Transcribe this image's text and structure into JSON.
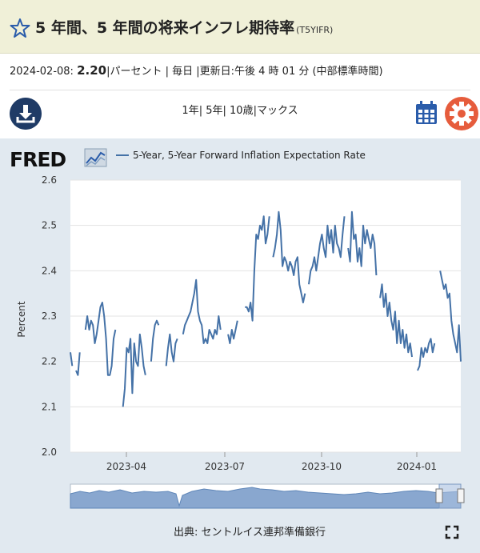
{
  "header": {
    "title": "5 年間、5 年間の将来インフレ期待率",
    "code": "(T5YIFR)"
  },
  "meta": {
    "date": "2024-02-08:",
    "value": "2.20",
    "info": "|パーセント | 毎日 |更新日:午後 4 時 01 分 (中部標準時間)"
  },
  "ranges": [
    "1年",
    "5年",
    "10歳",
    "マックス"
  ],
  "icons": {
    "download": "download-icon",
    "calendar": "calendar-icon",
    "settings": "gear-icon",
    "favorite": "star-icon",
    "fullscreen": "fullscreen-icon"
  },
  "colors": {
    "line": "#4572a7",
    "gear": "#e65c3c",
    "header_bg": "#f0f0d8",
    "chart_bg": "#e1e9f0"
  },
  "footer": {
    "source": "出典: セントルイス連邦準備銀行"
  },
  "logo": "FRED",
  "chart_data": {
    "type": "line",
    "title": "",
    "xlabel": "",
    "ylabel": "Percent",
    "ylim": [
      2.0,
      2.6
    ],
    "yticks": [
      "2.0",
      "2.1",
      "2.2",
      "2.3",
      "2.4",
      "2.5",
      "2.6"
    ],
    "xticks": [
      "2023-04",
      "2023-07",
      "2023-10",
      "2024-01"
    ],
    "grid": true,
    "legend": "top-left",
    "series": [
      {
        "name": "5-Year, 5-Year Forward Inflation Expectation Rate",
        "values": [
          [
            0,
            2.22
          ],
          [
            1,
            2.19
          ],
          [
            3,
            2.18
          ],
          [
            4,
            2.17
          ],
          [
            5,
            2.22
          ],
          [
            8,
            2.27
          ],
          [
            9,
            2.3
          ],
          [
            10,
            2.27
          ],
          [
            11,
            2.29
          ],
          [
            12,
            2.28
          ],
          [
            13,
            2.24
          ],
          [
            14,
            2.26
          ],
          [
            15,
            2.29
          ],
          [
            16,
            2.32
          ],
          [
            17,
            2.33
          ],
          [
            18,
            2.3
          ],
          [
            19,
            2.25
          ],
          [
            20,
            2.17
          ],
          [
            21,
            2.17
          ],
          [
            22,
            2.19
          ],
          [
            23,
            2.25
          ],
          [
            24,
            2.27
          ],
          [
            28,
            2.1
          ],
          [
            29,
            2.14
          ],
          [
            30,
            2.23
          ],
          [
            31,
            2.22
          ],
          [
            32,
            2.25
          ],
          [
            33,
            2.13
          ],
          [
            34,
            2.24
          ],
          [
            35,
            2.2
          ],
          [
            36,
            2.19
          ],
          [
            37,
            2.26
          ],
          [
            38,
            2.23
          ],
          [
            39,
            2.19
          ],
          [
            40,
            2.17
          ],
          [
            43,
            2.2
          ],
          [
            44,
            2.25
          ],
          [
            45,
            2.28
          ],
          [
            46,
            2.29
          ],
          [
            47,
            2.28
          ],
          [
            51,
            2.19
          ],
          [
            52,
            2.23
          ],
          [
            53,
            2.26
          ],
          [
            54,
            2.22
          ],
          [
            55,
            2.2
          ],
          [
            56,
            2.24
          ],
          [
            57,
            2.25
          ],
          [
            60,
            2.26
          ],
          [
            61,
            2.28
          ],
          [
            62,
            2.29
          ],
          [
            63,
            2.3
          ],
          [
            64,
            2.31
          ],
          [
            65,
            2.33
          ],
          [
            66,
            2.35
          ],
          [
            67,
            2.38
          ],
          [
            68,
            2.31
          ],
          [
            69,
            2.29
          ],
          [
            70,
            2.28
          ],
          [
            71,
            2.24
          ],
          [
            72,
            2.25
          ],
          [
            73,
            2.24
          ],
          [
            74,
            2.27
          ],
          [
            75,
            2.26
          ],
          [
            76,
            2.25
          ],
          [
            77,
            2.27
          ],
          [
            78,
            2.26
          ],
          [
            79,
            2.3
          ],
          [
            80,
            2.27
          ],
          [
            84,
            2.26
          ],
          [
            85,
            2.24
          ],
          [
            86,
            2.27
          ],
          [
            87,
            2.25
          ],
          [
            88,
            2.27
          ],
          [
            89,
            2.29
          ],
          [
            93,
            2.32
          ],
          [
            94,
            2.32
          ],
          [
            95,
            2.31
          ],
          [
            96,
            2.33
          ],
          [
            97,
            2.29
          ],
          [
            98,
            2.4
          ],
          [
            99,
            2.48
          ],
          [
            100,
            2.47
          ],
          [
            101,
            2.5
          ],
          [
            102,
            2.49
          ],
          [
            103,
            2.52
          ],
          [
            104,
            2.46
          ],
          [
            105,
            2.48
          ],
          [
            106,
            2.52
          ],
          [
            108,
            2.43
          ],
          [
            109,
            2.45
          ],
          [
            110,
            2.48
          ],
          [
            111,
            2.53
          ],
          [
            112,
            2.49
          ],
          [
            113,
            2.41
          ],
          [
            114,
            2.43
          ],
          [
            115,
            2.42
          ],
          [
            116,
            2.4
          ],
          [
            117,
            2.42
          ],
          [
            118,
            2.41
          ],
          [
            119,
            2.39
          ],
          [
            120,
            2.42
          ],
          [
            121,
            2.43
          ],
          [
            122,
            2.37
          ],
          [
            123,
            2.35
          ],
          [
            124,
            2.33
          ],
          [
            125,
            2.35
          ],
          [
            127,
            2.37
          ],
          [
            128,
            2.4
          ],
          [
            129,
            2.41
          ],
          [
            130,
            2.43
          ],
          [
            131,
            2.4
          ],
          [
            132,
            2.43
          ],
          [
            133,
            2.46
          ],
          [
            134,
            2.48
          ],
          [
            135,
            2.45
          ],
          [
            136,
            2.43
          ],
          [
            137,
            2.5
          ],
          [
            138,
            2.46
          ],
          [
            139,
            2.49
          ],
          [
            140,
            2.44
          ],
          [
            141,
            2.5
          ],
          [
            142,
            2.46
          ],
          [
            143,
            2.45
          ],
          [
            144,
            2.43
          ],
          [
            145,
            2.48
          ],
          [
            146,
            2.52
          ],
          [
            148,
            2.45
          ],
          [
            149,
            2.42
          ],
          [
            150,
            2.53
          ],
          [
            151,
            2.47
          ],
          [
            152,
            2.48
          ],
          [
            153,
            2.42
          ],
          [
            154,
            2.45
          ],
          [
            155,
            2.41
          ],
          [
            156,
            2.5
          ],
          [
            157,
            2.46
          ],
          [
            158,
            2.49
          ],
          [
            159,
            2.47
          ],
          [
            160,
            2.45
          ],
          [
            161,
            2.48
          ],
          [
            162,
            2.46
          ],
          [
            163,
            2.39
          ],
          [
            165,
            2.34
          ],
          [
            166,
            2.37
          ],
          [
            167,
            2.32
          ],
          [
            168,
            2.35
          ],
          [
            169,
            2.3
          ],
          [
            170,
            2.33
          ],
          [
            171,
            2.29
          ],
          [
            172,
            2.27
          ],
          [
            173,
            2.31
          ],
          [
            174,
            2.24
          ],
          [
            175,
            2.29
          ],
          [
            176,
            2.24
          ],
          [
            177,
            2.27
          ],
          [
            178,
            2.23
          ],
          [
            179,
            2.26
          ],
          [
            180,
            2.22
          ],
          [
            181,
            2.24
          ],
          [
            182,
            2.21
          ],
          [
            185,
            2.18
          ],
          [
            186,
            2.19
          ],
          [
            187,
            2.23
          ],
          [
            188,
            2.21
          ],
          [
            189,
            2.23
          ],
          [
            190,
            2.22
          ],
          [
            191,
            2.24
          ],
          [
            192,
            2.25
          ],
          [
            193,
            2.22
          ],
          [
            194,
            2.24
          ],
          [
            197,
            2.4
          ],
          [
            198,
            2.38
          ],
          [
            199,
            2.36
          ],
          [
            200,
            2.37
          ],
          [
            201,
            2.34
          ],
          [
            202,
            2.35
          ],
          [
            203,
            2.29
          ],
          [
            204,
            2.26
          ],
          [
            205,
            2.24
          ],
          [
            206,
            2.22
          ],
          [
            207,
            2.28
          ],
          [
            208,
            2.2
          ]
        ]
      }
    ]
  }
}
